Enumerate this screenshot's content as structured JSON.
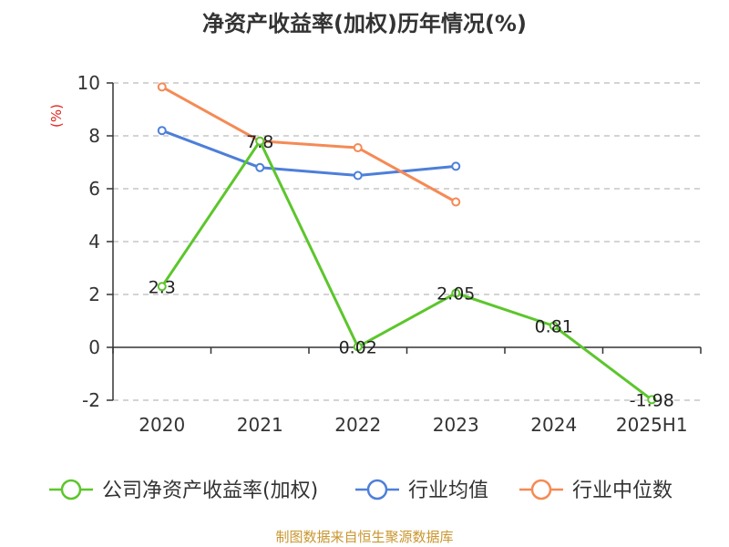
{
  "title": "净资产收益率(加权)历年情况(%)",
  "source": "制图数据来自恒生聚源数据库",
  "colors": {
    "unit_label": "#e0221b",
    "axis": "#333333",
    "grid": "#bbbbbb"
  },
  "chart_data": {
    "type": "line",
    "title": "净资产收益率(加权)历年情况(%)",
    "ylabel": "(%)",
    "xlabel": "",
    "categories": [
      "2020",
      "2021",
      "2022",
      "2023",
      "2024",
      "2025H1"
    ],
    "ylim": [
      -2,
      10
    ],
    "yticks": [
      -2,
      0,
      2,
      4,
      6,
      8,
      10
    ],
    "grid": true,
    "legend_position": "bottom",
    "series": [
      {
        "name": "公司净资产收益率(加权)",
        "color": "#5cc62c",
        "values": [
          2.3,
          7.8,
          0.02,
          2.05,
          0.81,
          -1.98
        ],
        "labels": [
          "2.3",
          "7.8",
          "0.02",
          "2.05",
          "0.81",
          "-1.98"
        ],
        "show_labels": true
      },
      {
        "name": "行业均值",
        "color": "#4d7fd9",
        "values": [
          8.2,
          6.8,
          6.5,
          6.85,
          null,
          null
        ],
        "show_labels": false
      },
      {
        "name": "行业中位数",
        "color": "#f58a55",
        "values": [
          9.85,
          7.8,
          7.55,
          5.5,
          null,
          null
        ],
        "show_labels": false
      }
    ]
  }
}
